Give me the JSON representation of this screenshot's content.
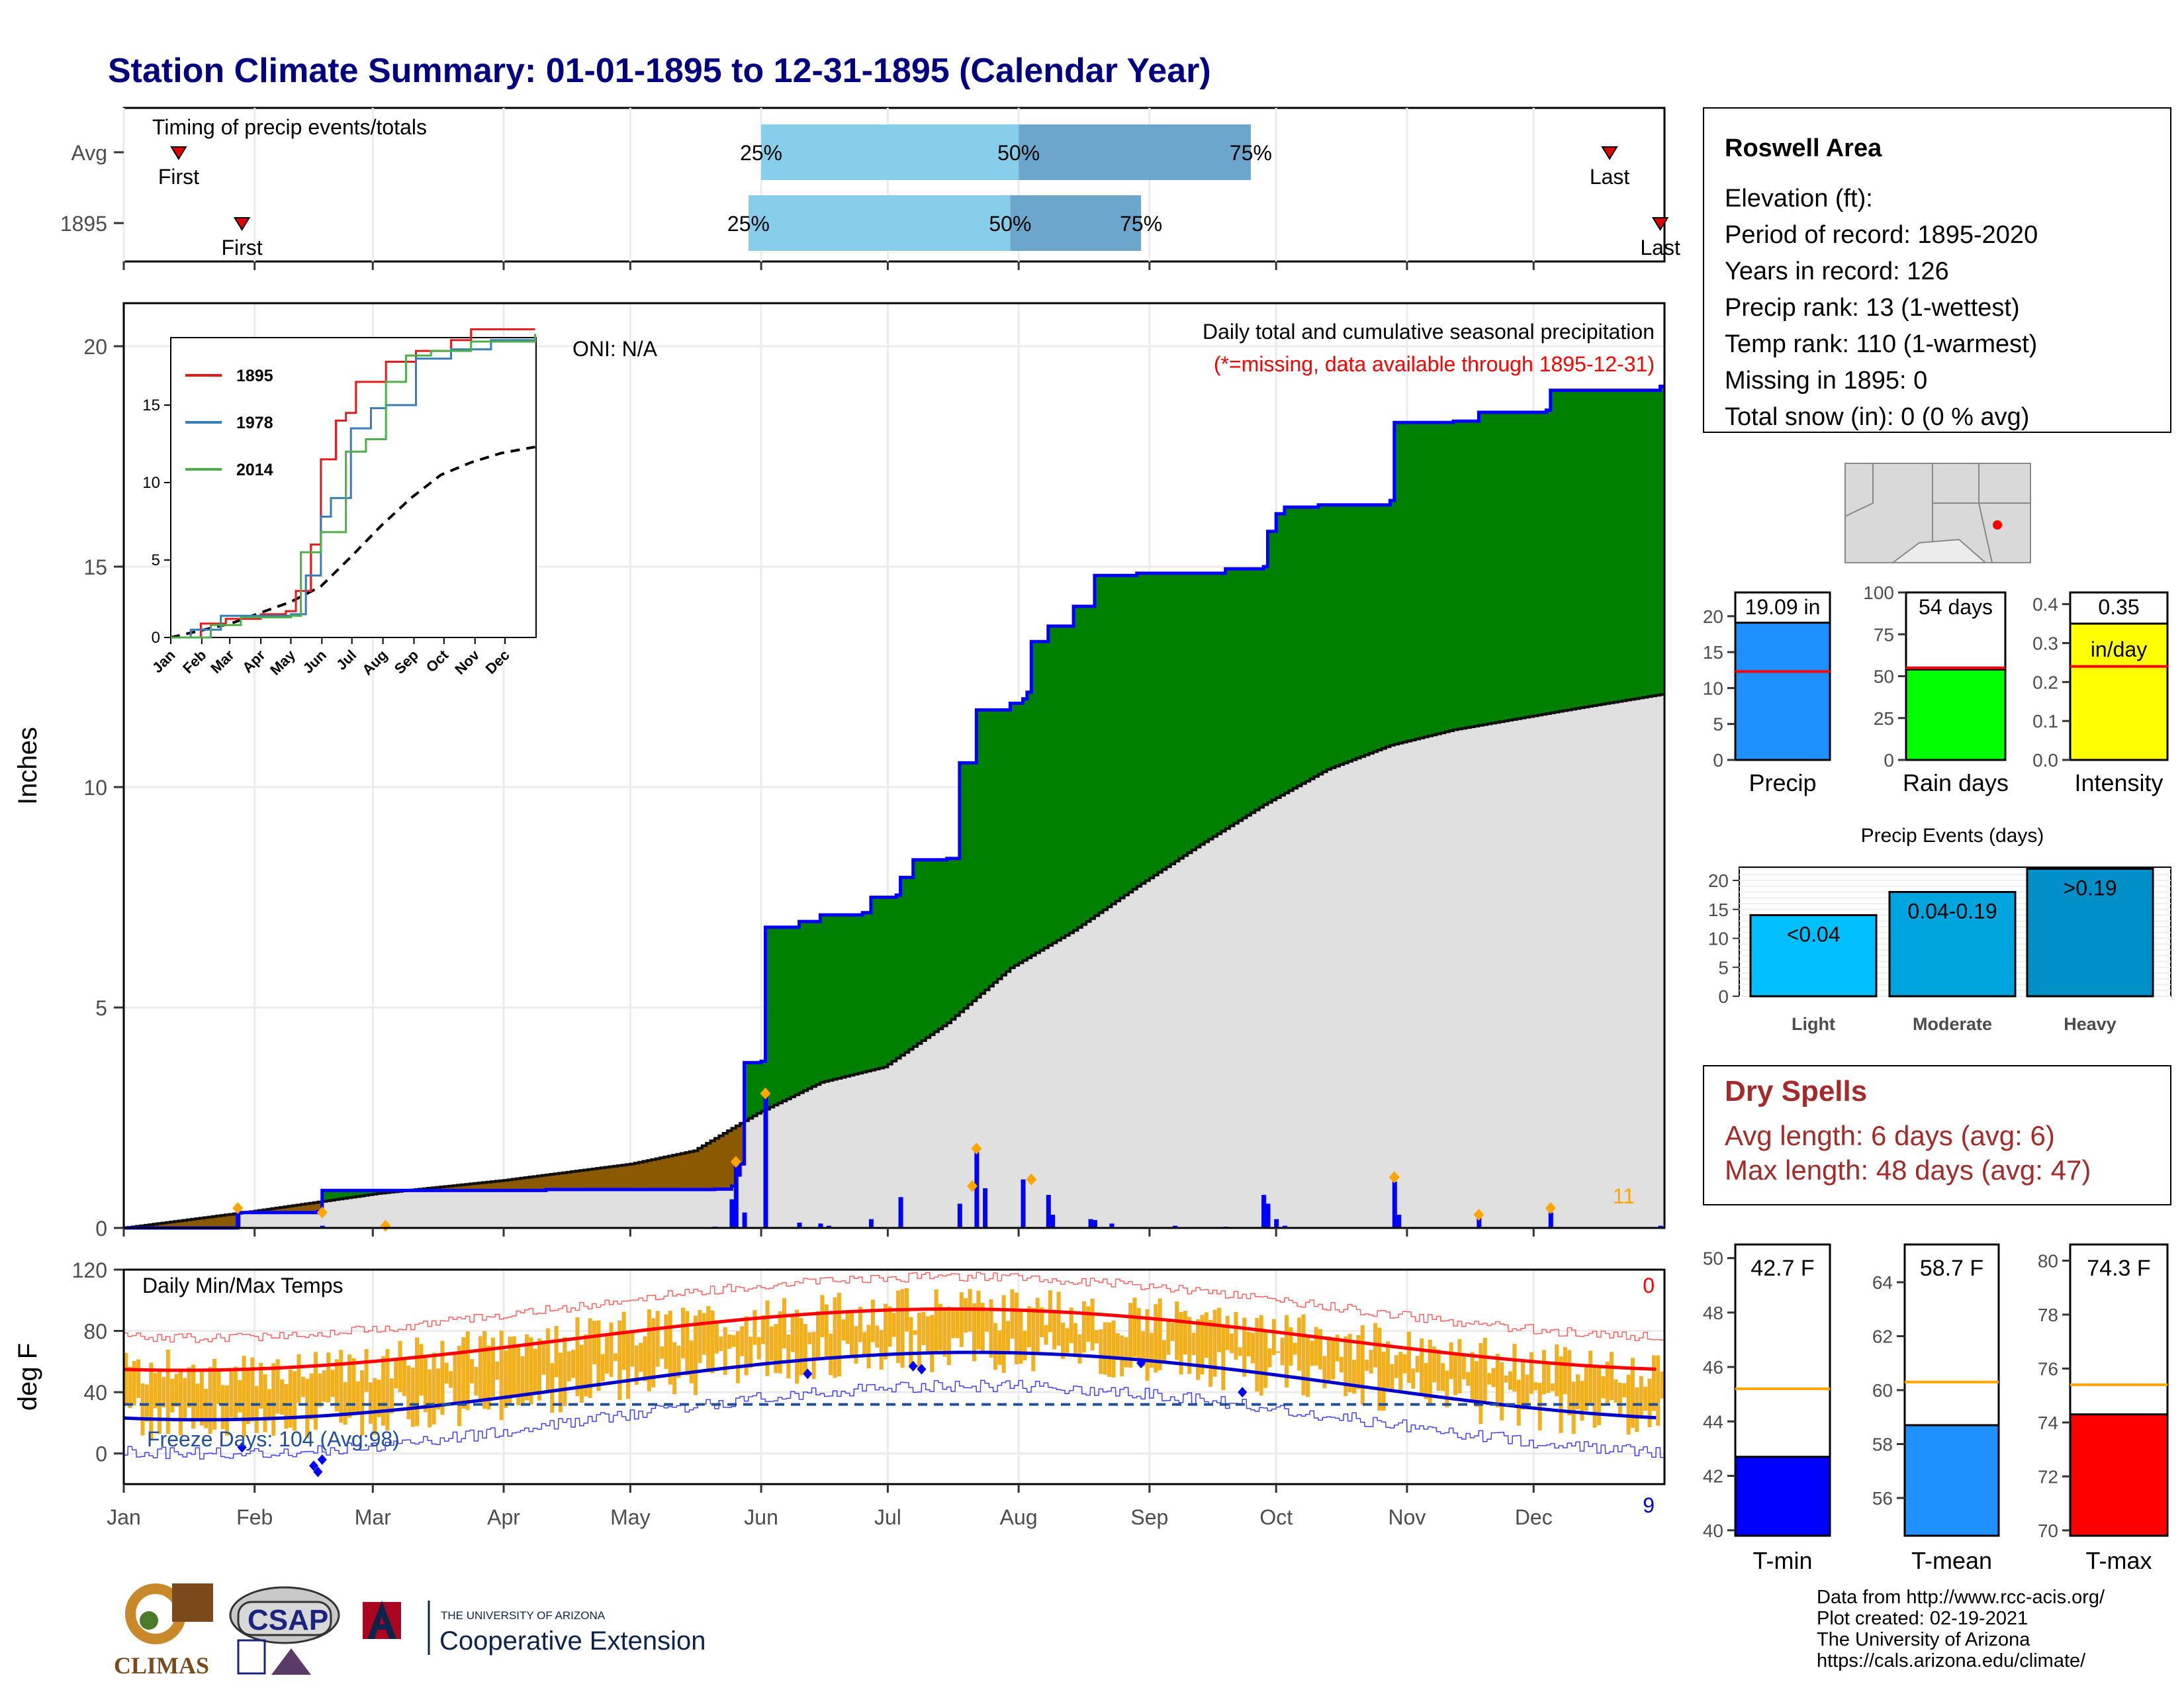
{
  "title": "Station Climate Summary: 01-01-1895 to 12-31-1895 (Calendar Year)",
  "months": [
    "Jan",
    "Feb",
    "Mar",
    "Apr",
    "May",
    "Jun",
    "Jul",
    "Aug",
    "Sep",
    "Oct",
    "Nov",
    "Dec"
  ],
  "timing": {
    "label": "Timing of precip events/totals",
    "rows": [
      {
        "name": "Avg",
        "first_day": 13,
        "p25_day": 151,
        "p50_day": 212,
        "p75_day": 267,
        "last_day": 352,
        "first_label": "First",
        "last_label": "Last"
      },
      {
        "name": "1895",
        "first_day": 28,
        "p25_day": 148,
        "p50_day": 210,
        "p75_day": 241,
        "last_day": 364,
        "first_label": "First",
        "last_label": "Last"
      }
    ],
    "labels": {
      "p25": "25%",
      "p50": "50%",
      "p75": "75%"
    }
  },
  "precip_panel": {
    "ylabel": "Inches",
    "oni": "ONI: N/A",
    "caption": "Daily total and cumulative seasonal precipitation",
    "missing_note": "(*=missing, data available through 1895-12-31)",
    "corner_count": "11",
    "yticks": [
      0,
      5,
      10,
      15,
      20
    ]
  },
  "inset": {
    "legend": [
      "1895",
      "1978",
      "2014"
    ],
    "colors": [
      "#e41a1c",
      "#377eb8",
      "#4daf4a"
    ],
    "yticks": [
      0,
      5,
      10,
      15
    ],
    "months": [
      "Jan",
      "Feb",
      "Mar",
      "Apr",
      "May",
      "Jun",
      "Jul",
      "Aug",
      "Sep",
      "Oct",
      "Nov",
      "Dec"
    ]
  },
  "temp_panel": {
    "title": "Daily Min/Max Temps",
    "ylabel": "deg F",
    "yticks": [
      0,
      40,
      80,
      120
    ],
    "freeze": "Freeze Days: 104 (Avg:98)",
    "top_count": "0",
    "bottom_count": "9"
  },
  "station": {
    "name": "Roswell Area",
    "lines": [
      "Elevation (ft):",
      "Period of record: 1895-2020",
      "Years in record: 126",
      "Precip rank: 13 (1-wettest)",
      "Temp rank: 110 (1-warmest)",
      "Missing in 1895: 0",
      "Total snow (in): 0 (0 % avg)"
    ]
  },
  "bars": {
    "precip": {
      "label": "Precip",
      "value_text": "19.09 in",
      "value": 19.09,
      "avg": 12.3,
      "yticks": [
        0,
        5,
        10,
        15,
        20
      ],
      "ymax": 23.3,
      "color": "#1e90ff"
    },
    "raindays": {
      "label": "Rain days",
      "value_text": "54 days",
      "value": 54,
      "avg": 55,
      "yticks": [
        0,
        25,
        50,
        75,
        100
      ],
      "ymax": 100,
      "color": "#00ff00"
    },
    "intensity": {
      "label": "Intensity",
      "value_text": "0.35",
      "unit": "in/day",
      "value": 0.35,
      "avg": 0.24,
      "yticks": [
        "0.0",
        "0.1",
        "0.2",
        "0.3",
        "0.4"
      ],
      "ymax": 0.43,
      "color": "#ffff00"
    }
  },
  "events": {
    "title": "Precip Events (days)",
    "categories": [
      "Light",
      "Moderate",
      "Heavy"
    ],
    "labels": [
      "<0.04",
      "0.04-0.19",
      ">0.19"
    ],
    "values": [
      14,
      18,
      22
    ],
    "yticks": [
      0,
      5,
      10,
      15,
      20
    ],
    "colors": [
      "#00bfff",
      "#00a5e0",
      "#0090c8"
    ]
  },
  "dry_spells": {
    "title": "Dry Spells",
    "avg": "Avg length: 6 days (avg: 6)",
    "max": "Max length: 48 days (avg: 47)"
  },
  "temps": {
    "tmin": {
      "label": "T-min",
      "value_text": "42.7 F",
      "value": 42.7,
      "avg": 45.2,
      "ymin": 39.8,
      "ymax": 50.5,
      "yticks": [
        40,
        42,
        44,
        46,
        48,
        50
      ],
      "color": "#0000ff"
    },
    "tmean": {
      "label": "T-mean",
      "value_text": "58.7 F",
      "value": 58.7,
      "avg": 60.3,
      "ymin": 54.6,
      "ymax": 65.4,
      "yticks": [
        56,
        58,
        60,
        62,
        64
      ],
      "color": "#1e90ff"
    },
    "tmax": {
      "label": "T-max",
      "value_text": "74.3 F",
      "value": 74.3,
      "avg": 75.4,
      "ymin": 69.8,
      "ymax": 80.6,
      "yticks": [
        70,
        72,
        74,
        76,
        78,
        80
      ],
      "color": "#ff0000"
    }
  },
  "footer": [
    "Data from http://www.rcc-acis.org/",
    "Plot created: 02-19-2021",
    "The University of Arizona",
    "https://cals.arizona.edu/climate/"
  ],
  "logos": {
    "climas": "CLIMAS",
    "csap": "CSAP",
    "ua_small": "THE UNIVERSITY OF ARIZONA",
    "ua_big": "Cooperative Extension"
  },
  "chart_data": {
    "type": "area",
    "title": "Daily total and cumulative seasonal precipitation",
    "ylabel": "Inches",
    "ylim": [
      0,
      21
    ],
    "cumulative_1895": [
      [
        0,
        0
      ],
      [
        27,
        0.35
      ],
      [
        46,
        0.37
      ],
      [
        47,
        0.85
      ],
      [
        100,
        0.87
      ],
      [
        140,
        0.88
      ],
      [
        144,
        0.95
      ],
      [
        145,
        1.2
      ],
      [
        146,
        1.45
      ],
      [
        147,
        3.75
      ],
      [
        151,
        3.78
      ],
      [
        152,
        6.82
      ],
      [
        160,
        6.95
      ],
      [
        165,
        7.1
      ],
      [
        175,
        7.15
      ],
      [
        177,
        7.5
      ],
      [
        183,
        7.55
      ],
      [
        184,
        7.95
      ],
      [
        187,
        8.35
      ],
      [
        195,
        8.38
      ],
      [
        198,
        10.55
      ],
      [
        202,
        11.75
      ],
      [
        210,
        11.9
      ],
      [
        213,
        12.0
      ],
      [
        214,
        12.15
      ],
      [
        215,
        13.3
      ],
      [
        219,
        13.65
      ],
      [
        225,
        14.1
      ],
      [
        230,
        14.8
      ],
      [
        240,
        14.85
      ],
      [
        260,
        14.85
      ],
      [
        261,
        14.95
      ],
      [
        270,
        15.0
      ],
      [
        271,
        15.8
      ],
      [
        273,
        16.2
      ],
      [
        275,
        16.35
      ],
      [
        283,
        16.4
      ],
      [
        300,
        16.5
      ],
      [
        301,
        18.27
      ],
      [
        315,
        18.3
      ],
      [
        321,
        18.5
      ],
      [
        337,
        18.55
      ],
      [
        338,
        19.0
      ],
      [
        364,
        19.09
      ]
    ],
    "average_cumulative": [
      [
        0,
        0
      ],
      [
        30,
        0.37
      ],
      [
        60,
        0.78
      ],
      [
        90,
        1.08
      ],
      [
        120,
        1.45
      ],
      [
        135,
        1.75
      ],
      [
        150,
        2.6
      ],
      [
        165,
        3.3
      ],
      [
        180,
        3.65
      ],
      [
        195,
        4.65
      ],
      [
        210,
        5.9
      ],
      [
        225,
        6.75
      ],
      [
        240,
        7.75
      ],
      [
        255,
        8.7
      ],
      [
        270,
        9.6
      ],
      [
        285,
        10.4
      ],
      [
        300,
        10.95
      ],
      [
        315,
        11.3
      ],
      [
        330,
        11.55
      ],
      [
        345,
        11.8
      ],
      [
        364,
        12.1
      ]
    ],
    "daily_events": [
      [
        27,
        0.45
      ],
      [
        47,
        0.05
      ],
      [
        100,
        0.02
      ],
      [
        140,
        0.03
      ],
      [
        144,
        0.65
      ],
      [
        145,
        1.4
      ],
      [
        147,
        0.35
      ],
      [
        152,
        3.05
      ],
      [
        160,
        0.12
      ],
      [
        165,
        0.1
      ],
      [
        167,
        0.05
      ],
      [
        177,
        0.2
      ],
      [
        184,
        0.7
      ],
      [
        189,
        0.02
      ],
      [
        198,
        0.55
      ],
      [
        202,
        1.75
      ],
      [
        204,
        0.9
      ],
      [
        213,
        1.1
      ],
      [
        219,
        0.75
      ],
      [
        220,
        0.3
      ],
      [
        229,
        0.2
      ],
      [
        230,
        0.18
      ],
      [
        234,
        0.1
      ],
      [
        249,
        0.05
      ],
      [
        261,
        0.03
      ],
      [
        270,
        0.75
      ],
      [
        271,
        0.55
      ],
      [
        273,
        0.2
      ],
      [
        275,
        0.05
      ],
      [
        301,
        1.05
      ],
      [
        302,
        0.3
      ],
      [
        321,
        0.25
      ],
      [
        338,
        0.35
      ],
      [
        364,
        0.05
      ]
    ]
  }
}
